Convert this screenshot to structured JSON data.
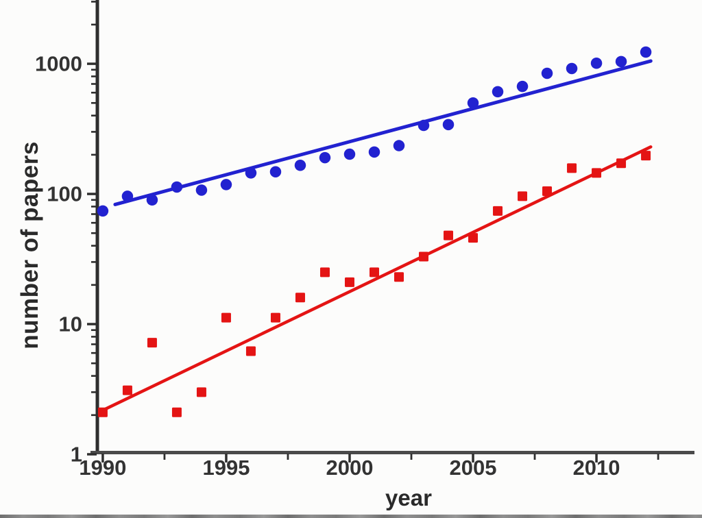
{
  "figure": {
    "background": "#fcfcfb",
    "axis_color": "#2e2e2e",
    "x_axis_color": "#4a4a4a",
    "tick_label_color": "#333333",
    "bottom_strip_color": "#8a8a8a"
  },
  "chart_data": {
    "type": "scatter",
    "title": "",
    "xlabel": "year",
    "ylabel": "number of papers",
    "x_scale": "linear",
    "y_scale": "log",
    "xlim": [
      1989.78,
      2013.97
    ],
    "ylim": [
      1,
      3090
    ],
    "x_ticks": [
      1990,
      1995,
      2000,
      2005,
      2010
    ],
    "x_minor_ticks": [
      1992.5,
      1997.5,
      2002.5,
      2007.5,
      2012.5
    ],
    "y_ticks": [
      1,
      10,
      100,
      1000
    ],
    "y_tick_labels": [
      "1",
      "10",
      "100",
      "1000"
    ],
    "grid": false,
    "legend_position": "none",
    "categories": [
      1990,
      1991,
      1992,
      1993,
      1994,
      1995,
      1996,
      1997,
      1998,
      1999,
      2000,
      2001,
      2002,
      2003,
      2004,
      2005,
      2006,
      2007,
      2008,
      2009,
      2010,
      2011,
      2012
    ],
    "series": [
      {
        "name": "series-blue-circles",
        "marker": "circle",
        "marker_size": 16.5,
        "color": "#2222d0",
        "values": [
          74,
          96,
          90,
          113,
          107,
          118,
          145,
          148,
          166,
          190,
          202,
          210,
          235,
          336,
          341,
          500,
          610,
          670,
          845,
          920,
          1010,
          1040,
          1230
        ]
      },
      {
        "name": "series-red-squares",
        "marker": "square",
        "marker_size": 14,
        "color": "#e41414",
        "values": [
          2.1,
          3.1,
          7.2,
          2.1,
          3.0,
          11.2,
          6.2,
          11.2,
          16,
          25,
          21,
          25,
          23,
          33,
          48,
          46,
          74,
          96,
          105,
          158,
          145,
          172,
          197
        ]
      }
    ],
    "trend_lines": [
      {
        "name": "trend-blue",
        "color": "#2222d0",
        "width": 5,
        "x": [
          1990.5,
          2012.2
        ],
        "y": [
          83,
          1050
        ]
      },
      {
        "name": "trend-red",
        "color": "#e41414",
        "width": 4.5,
        "x": [
          1990.05,
          2012.2
        ],
        "y": [
          2.2,
          230
        ]
      }
    ]
  }
}
